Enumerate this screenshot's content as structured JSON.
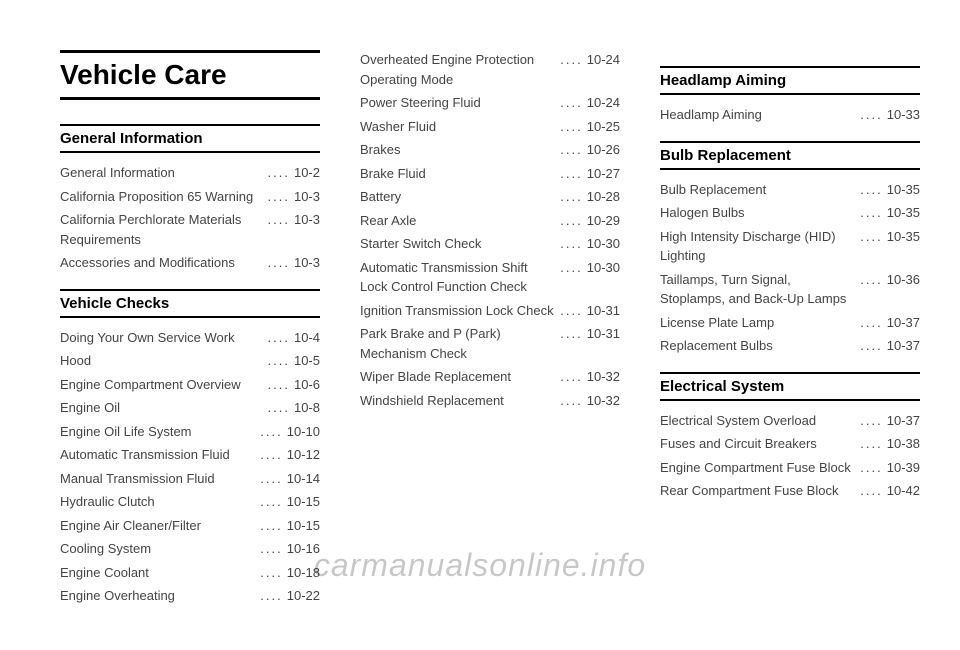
{
  "chapter_title": "Vehicle Care",
  "watermark": "carmanualsonline.info",
  "columns": [
    {
      "sections": [
        {
          "heading": "General Information",
          "entries": [
            {
              "label": "General Information",
              "page": "10-2"
            },
            {
              "label": "California Proposition 65 Warning",
              "page": "10-3"
            },
            {
              "label": "California Perchlorate Materials Requirements",
              "page": "10-3"
            },
            {
              "label": "Accessories and Modifications",
              "page": "10-3"
            }
          ]
        },
        {
          "heading": "Vehicle Checks",
          "entries": [
            {
              "label": "Doing Your Own Service Work",
              "page": "10-4"
            },
            {
              "label": "Hood",
              "page": "10-5"
            },
            {
              "label": "Engine Compartment Overview",
              "page": "10-6"
            },
            {
              "label": "Engine Oil",
              "page": "10-8"
            },
            {
              "label": "Engine Oil Life System",
              "page": "10-10"
            },
            {
              "label": "Automatic Transmission Fluid",
              "page": "10-12"
            },
            {
              "label": "Manual Transmission Fluid",
              "page": "10-14"
            },
            {
              "label": "Hydraulic Clutch",
              "page": "10-15"
            },
            {
              "label": "Engine Air Cleaner/Filter",
              "page": "10-15"
            },
            {
              "label": "Cooling System",
              "page": "10-16"
            },
            {
              "label": "Engine Coolant",
              "page": "10-18"
            },
            {
              "label": "Engine Overheating",
              "page": "10-22"
            }
          ]
        }
      ]
    },
    {
      "sections": [
        {
          "heading": null,
          "entries": [
            {
              "label": "Overheated Engine Protection Operating Mode",
              "page": "10-24"
            },
            {
              "label": "Power Steering Fluid",
              "page": "10-24"
            },
            {
              "label": "Washer Fluid",
              "page": "10-25"
            },
            {
              "label": "Brakes",
              "page": "10-26"
            },
            {
              "label": "Brake Fluid",
              "page": "10-27"
            },
            {
              "label": "Battery",
              "page": "10-28"
            },
            {
              "label": "Rear Axle",
              "page": "10-29"
            },
            {
              "label": "Starter Switch Check",
              "page": "10-30"
            },
            {
              "label": "Automatic Transmission Shift Lock Control Function Check",
              "page": "10-30"
            },
            {
              "label": "Ignition Transmission Lock Check",
              "page": "10-31"
            },
            {
              "label": "Park Brake and P (Park) Mechanism Check",
              "page": "10-31"
            },
            {
              "label": "Wiper Blade Replacement",
              "page": "10-32"
            },
            {
              "label": "Windshield Replacement",
              "page": "10-32"
            }
          ]
        }
      ]
    },
    {
      "sections": [
        {
          "heading": "Headlamp Aiming",
          "entries": [
            {
              "label": "Headlamp Aiming",
              "page": "10-33"
            }
          ]
        },
        {
          "heading": "Bulb Replacement",
          "entries": [
            {
              "label": "Bulb Replacement",
              "page": "10-35"
            },
            {
              "label": "Halogen Bulbs",
              "page": "10-35"
            },
            {
              "label": "High Intensity Discharge (HID) Lighting",
              "page": "10-35"
            },
            {
              "label": "Taillamps, Turn Signal, Stoplamps, and Back-Up Lamps",
              "page": "10-36"
            },
            {
              "label": "License Plate Lamp",
              "page": "10-37"
            },
            {
              "label": "Replacement Bulbs",
              "page": "10-37"
            }
          ]
        },
        {
          "heading": "Electrical System",
          "entries": [
            {
              "label": "Electrical System Overload",
              "page": "10-37"
            },
            {
              "label": "Fuses and Circuit Breakers",
              "page": "10-38"
            },
            {
              "label": "Engine Compartment Fuse Block",
              "page": "10-39"
            },
            {
              "label": "Rear Compartment Fuse Block",
              "page": "10-42"
            }
          ]
        }
      ]
    }
  ]
}
